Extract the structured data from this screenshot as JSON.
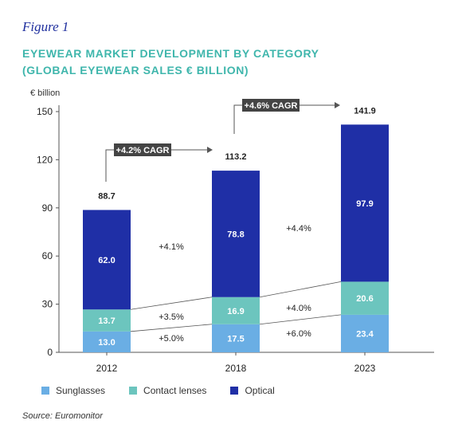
{
  "figure_label": "Figure 1",
  "title_lines": [
    "EYEWEAR MARKET DEVELOPMENT BY CATEGORY",
    "(GLOBAL EYEWEAR SALES € BILLION)"
  ],
  "source": "Source: Euromonitor",
  "colors": {
    "Sunglasses": "#6aaee4",
    "Contact lenses": "#6cc5be",
    "Optical": "#1f2fa6",
    "callout_bg": "#444444"
  },
  "chart_data": {
    "type": "bar",
    "stacked": true,
    "categories": [
      "2012",
      "2018",
      "2023"
    ],
    "series": [
      {
        "name": "Sunglasses",
        "values": [
          13.0,
          17.5,
          23.4
        ],
        "labels": [
          "13.0",
          "17.5",
          "23.4"
        ]
      },
      {
        "name": "Contact lenses",
        "values": [
          13.7,
          16.9,
          20.6
        ],
        "labels": [
          "13.7",
          "16.9",
          "20.6"
        ]
      },
      {
        "name": "Optical",
        "values": [
          62.0,
          78.8,
          97.9
        ],
        "labels": [
          "62.0",
          "78.8",
          "97.9"
        ]
      }
    ],
    "totals": [
      "88.7",
      "113.2",
      "141.9"
    ],
    "ylabel": "€ billion",
    "yticks": [
      0,
      30,
      60,
      90,
      120,
      150
    ],
    "ylim": [
      0,
      150
    ],
    "grid": false,
    "legend_position": "bottom",
    "segment_growth": [
      {
        "period": "2012-2018",
        "series": "Optical",
        "label": "+4.1%"
      },
      {
        "period": "2012-2018",
        "series": "Contact lenses",
        "label": "+3.5%"
      },
      {
        "period": "2012-2018",
        "series": "Sunglasses",
        "label": "+5.0%"
      },
      {
        "period": "2018-2023",
        "series": "Optical",
        "label": "+4.4%"
      },
      {
        "period": "2018-2023",
        "series": "Contact lenses",
        "label": "+4.0%"
      },
      {
        "period": "2018-2023",
        "series": "Sunglasses",
        "label": "+6.0%"
      }
    ],
    "cagr_callouts": [
      {
        "from": "2012",
        "to": "2018",
        "label": "+4.2% CAGR"
      },
      {
        "from": "2018",
        "to": "2023",
        "label": "+4.6% CAGR"
      }
    ]
  }
}
